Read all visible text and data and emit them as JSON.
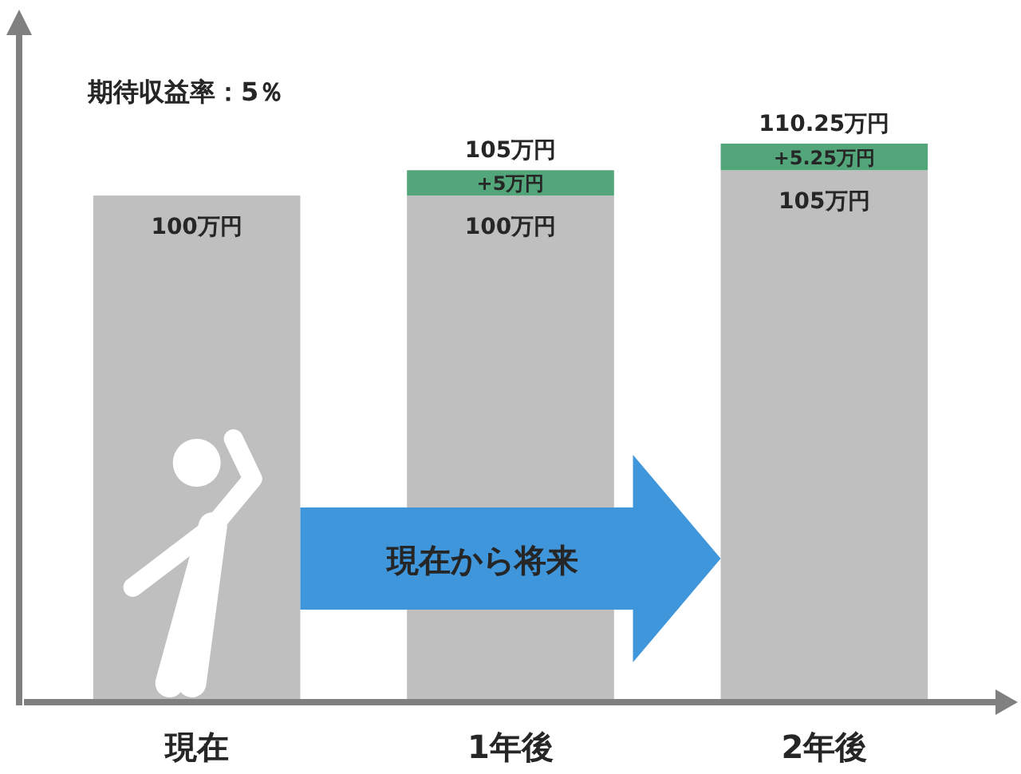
{
  "chart_data": {
    "type": "bar",
    "stacked": true,
    "categories": [
      "現在",
      "1年後",
      "2年後"
    ],
    "series": [
      {
        "color": "#bfbfbf",
        "values": [
          100,
          100,
          105
        ],
        "value_labels": [
          "100万円",
          "100万円",
          "105万円"
        ]
      },
      {
        "color": "#53a57a",
        "values": [
          null,
          5,
          5.25
        ],
        "value_labels": [
          null,
          "+5万円",
          "+5.25万円"
        ]
      }
    ],
    "totals": [
      null,
      "105万円",
      "110.25万円"
    ],
    "tick_labels": "x",
    "annotations": [
      "期待収益率：5％",
      "現在から将来"
    ]
  }
}
